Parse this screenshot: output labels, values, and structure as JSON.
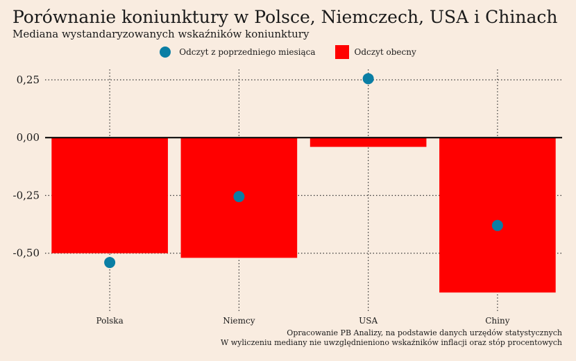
{
  "chart_data": {
    "type": "bar",
    "title": "Porównanie koniunktury w Polsce, Niemczech, USA i Chinach",
    "subtitle": "Mediana wystandaryzowanych wskaźników koniunktury",
    "categories": [
      "Polska",
      "Niemcy",
      "USA",
      "Chiny"
    ],
    "series": [
      {
        "name": "Odczyt obecny",
        "kind": "bar",
        "values": [
          -0.5,
          -0.52,
          -0.04,
          -0.67
        ],
        "color": "#ff0000"
      },
      {
        "name": "Odczyt z poprzedniego miesiąca",
        "kind": "point",
        "values": [
          -0.54,
          -0.255,
          0.255,
          -0.38
        ],
        "color": "#0a7ea4"
      }
    ],
    "yticks": [
      0.25,
      0.0,
      -0.25,
      -0.5
    ],
    "ytick_labels": [
      "0,25",
      "0,00",
      "-0,25",
      "-0,50"
    ],
    "ylim": [
      -0.75,
      0.295
    ],
    "grid": true,
    "legend_position": "top"
  },
  "caption": {
    "line1": "Opracowanie PB Analizy, na podstawie danych urzędów statystycznych",
    "line2": "W wyliczeniu mediany nie uwzględnieniono wskaźników inflacji oraz stóp procentowych"
  }
}
